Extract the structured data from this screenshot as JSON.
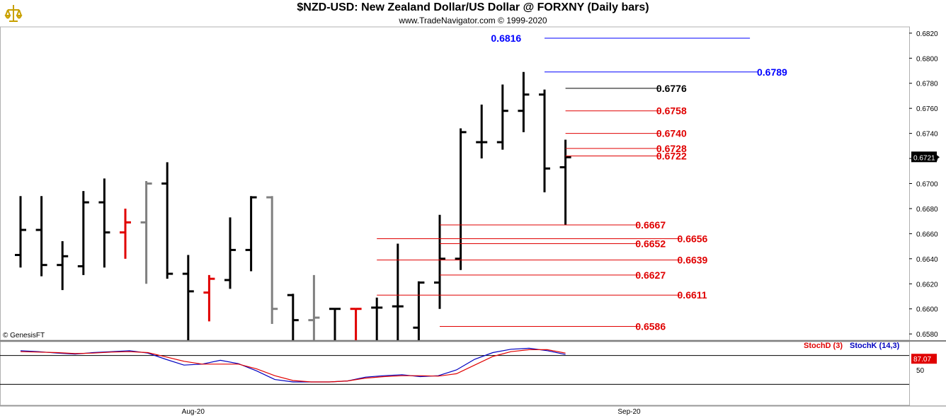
{
  "header": {
    "title": "$NZD-USD:  New Zealand Dollar/US Dollar @ FORXNY  (Daily bars)",
    "subtitle": "www.TradeNavigator.com © 1999-2020",
    "copyright": "© GenesisFT"
  },
  "indicator": {
    "stochd_label": "StochD (3)",
    "stochk_label": "StochK (14,3)",
    "stochd_color": "#e00000",
    "stochk_color": "#0000c0",
    "last_value": "87.07",
    "axis_label": "50"
  },
  "colors": {
    "up_bar": "#000000",
    "down_red": "#e00000",
    "gray_bar": "#808080",
    "blue_level": "#0000ff",
    "black_level": "#000000",
    "red_level": "#e00000"
  },
  "chart_data": [
    {
      "type": "ohlc",
      "title": "$NZD-USD:  New Zealand Dollar/US Dollar @ FORXNY  (Daily bars)",
      "x_labels": [
        "Aug-20",
        "Sep-20"
      ],
      "ylim": [
        0.6575,
        0.6825
      ],
      "y_ticks": [
        "0.6820",
        "0.6800",
        "0.6780",
        "0.6760",
        "0.6740",
        "0.6720",
        "0.6700",
        "0.6680",
        "0.6660",
        "0.6640",
        "0.6620",
        "0.6600",
        "0.6580"
      ],
      "last_price": "0.6721",
      "bars": [
        {
          "o": 0.6643,
          "h": 0.669,
          "l": 0.6633,
          "c": 0.6663,
          "color": "black"
        },
        {
          "o": 0.6663,
          "h": 0.669,
          "l": 0.6626,
          "c": 0.6635,
          "color": "black"
        },
        {
          "o": 0.6635,
          "h": 0.6654,
          "l": 0.6615,
          "c": 0.6642,
          "color": "black"
        },
        {
          "o": 0.6634,
          "h": 0.6694,
          "l": 0.6627,
          "c": 0.6685,
          "color": "black"
        },
        {
          "o": 0.6685,
          "h": 0.6704,
          "l": 0.6633,
          "c": 0.6661,
          "color": "black"
        },
        {
          "o": 0.6661,
          "h": 0.668,
          "l": 0.664,
          "c": 0.6669,
          "color": "red"
        },
        {
          "o": 0.6669,
          "h": 0.6702,
          "l": 0.662,
          "c": 0.67,
          "color": "gray"
        },
        {
          "o": 0.67,
          "h": 0.6717,
          "l": 0.6624,
          "c": 0.6628,
          "color": "black"
        },
        {
          "o": 0.6628,
          "h": 0.6643,
          "l": 0.6575,
          "c": 0.6614,
          "color": "black"
        },
        {
          "o": 0.6613,
          "h": 0.6627,
          "l": 0.659,
          "c": 0.6624,
          "color": "red"
        },
        {
          "o": 0.6623,
          "h": 0.6673,
          "l": 0.6616,
          "c": 0.6647,
          "color": "black"
        },
        {
          "o": 0.6647,
          "h": 0.669,
          "l": 0.663,
          "c": 0.6689,
          "color": "black"
        },
        {
          "o": 0.6689,
          "h": 0.669,
          "l": 0.6588,
          "c": 0.66,
          "color": "gray"
        },
        {
          "o": 0.6611,
          "h": 0.6612,
          "l": 0.6575,
          "c": 0.6591,
          "color": "black"
        },
        {
          "o": 0.6591,
          "h": 0.6627,
          "l": 0.6575,
          "c": 0.6593,
          "color": "gray"
        },
        {
          "o": 0.66,
          "h": 0.66,
          "l": 0.6575,
          "c": 0.66,
          "color": "black"
        },
        {
          "o": 0.66,
          "h": 0.66,
          "l": 0.6575,
          "c": 0.66,
          "color": "red"
        },
        {
          "o": 0.6601,
          "h": 0.6609,
          "l": 0.6575,
          "c": 0.6601,
          "color": "black"
        },
        {
          "o": 0.6602,
          "h": 0.6652,
          "l": 0.6575,
          "c": 0.6602,
          "color": "black"
        },
        {
          "o": 0.6585,
          "h": 0.6622,
          "l": 0.6575,
          "c": 0.6621,
          "color": "black"
        },
        {
          "o": 0.6621,
          "h": 0.6675,
          "l": 0.66,
          "c": 0.664,
          "color": "black"
        },
        {
          "o": 0.664,
          "h": 0.6744,
          "l": 0.6631,
          "c": 0.6741,
          "color": "black"
        },
        {
          "o": 0.6733,
          "h": 0.6763,
          "l": 0.672,
          "c": 0.6733,
          "color": "black"
        },
        {
          "o": 0.6733,
          "h": 0.6779,
          "l": 0.6727,
          "c": 0.6758,
          "color": "black"
        },
        {
          "o": 0.6758,
          "h": 0.6789,
          "l": 0.6741,
          "c": 0.6771,
          "color": "black"
        },
        {
          "o": 0.6771,
          "h": 0.6775,
          "l": 0.6693,
          "c": 0.6712,
          "color": "black"
        },
        {
          "o": 0.6713,
          "h": 0.6735,
          "l": 0.6667,
          "c": 0.6721,
          "color": "black"
        }
      ],
      "levels": [
        {
          "value": "0.6816",
          "price": 0.6816,
          "color": "blue",
          "x_from": 29.0,
          "x_to": 38.8,
          "label_side": "left",
          "label_x": 28.0
        },
        {
          "value": "0.6789",
          "price": 0.6789,
          "color": "blue",
          "x_from": 29.0,
          "x_to": 39.2,
          "label_side": "right",
          "label_x": 39.0
        },
        {
          "value": "0.6776",
          "price": 0.6776,
          "color": "black",
          "x_from": 30.0,
          "x_to": 34.5,
          "label_side": "right",
          "label_x": 34.2
        },
        {
          "value": "0.6758",
          "price": 0.6758,
          "color": "red",
          "x_from": 30.0,
          "x_to": 34.5,
          "label_side": "right",
          "label_x": 34.2
        },
        {
          "value": "0.6740",
          "price": 0.674,
          "color": "red",
          "x_from": 30.0,
          "x_to": 34.5,
          "label_side": "right",
          "label_x": 34.2
        },
        {
          "value": "0.6728",
          "price": 0.6728,
          "color": "red",
          "x_from": 30.0,
          "x_to": 34.5,
          "label_side": "right",
          "label_x": 34.2
        },
        {
          "value": "0.6722",
          "price": 0.6722,
          "color": "red",
          "x_from": 30.0,
          "x_to": 34.5,
          "label_side": "right",
          "label_x": 34.2
        },
        {
          "value": "0.6667",
          "price": 0.6667,
          "color": "red",
          "x_from": 24.0,
          "x_to": 33.5,
          "label_side": "right",
          "label_x": 33.2
        },
        {
          "value": "0.6656",
          "price": 0.6656,
          "color": "red",
          "x_from": 21.0,
          "x_to": 35.5,
          "label_side": "right",
          "label_x": 35.2
        },
        {
          "value": "0.6652",
          "price": 0.6652,
          "color": "red",
          "x_from": 24.0,
          "x_to": 33.5,
          "label_side": "right",
          "label_x": 33.2
        },
        {
          "value": "0.6639",
          "price": 0.6639,
          "color": "red",
          "x_from": 21.0,
          "x_to": 35.5,
          "label_side": "right",
          "label_x": 35.2
        },
        {
          "value": "0.6627",
          "price": 0.6627,
          "color": "red",
          "x_from": 24.0,
          "x_to": 33.5,
          "label_side": "right",
          "label_x": 33.2
        },
        {
          "value": "0.6611",
          "price": 0.6611,
          "color": "red",
          "x_from": 21.0,
          "x_to": 35.5,
          "label_side": "right",
          "label_x": 35.2
        },
        {
          "value": "0.6586",
          "price": 0.6586,
          "color": "red",
          "x_from": 24.0,
          "x_to": 33.5,
          "label_side": "right",
          "label_x": 33.2
        }
      ]
    },
    {
      "type": "line",
      "title": "StochD (3) / StochK (14,3)",
      "ylim": [
        0,
        100
      ],
      "y_ticks": [
        "50"
      ],
      "series": [
        {
          "name": "StochK (14,3)",
          "color": "blue",
          "values": [
            90,
            88,
            85,
            83,
            86,
            88,
            90,
            85,
            72,
            60,
            62,
            70,
            63,
            48,
            30,
            25,
            25,
            25,
            27,
            35,
            38,
            40,
            36,
            38,
            50,
            72,
            86,
            93,
            95,
            90,
            82
          ]
        },
        {
          "name": "StochD (3)",
          "color": "red",
          "values": [
            88,
            87,
            86,
            84,
            85,
            87,
            88,
            86,
            77,
            68,
            62,
            62,
            62,
            52,
            38,
            28,
            25,
            25,
            27,
            33,
            36,
            38,
            38,
            37,
            42,
            60,
            78,
            88,
            92,
            92,
            85
          ]
        }
      ]
    }
  ]
}
